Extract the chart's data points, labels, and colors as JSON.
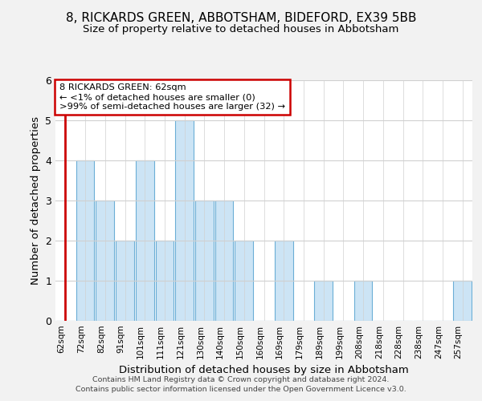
{
  "title1": "8, RICKARDS GREEN, ABBOTSHAM, BIDEFORD, EX39 5BB",
  "title2": "Size of property relative to detached houses in Abbotsham",
  "xlabel": "Distribution of detached houses by size in Abbotsham",
  "ylabel": "Number of detached properties",
  "categories": [
    "62sqm",
    "72sqm",
    "82sqm",
    "91sqm",
    "101sqm",
    "111sqm",
    "121sqm",
    "130sqm",
    "140sqm",
    "150sqm",
    "160sqm",
    "169sqm",
    "179sqm",
    "189sqm",
    "199sqm",
    "208sqm",
    "218sqm",
    "228sqm",
    "238sqm",
    "247sqm",
    "257sqm"
  ],
  "values": [
    0,
    4,
    3,
    2,
    4,
    2,
    5,
    3,
    3,
    2,
    0,
    2,
    0,
    1,
    0,
    1,
    0,
    0,
    0,
    0,
    1
  ],
  "bar_color": "#cce4f5",
  "bar_edge_color": "#6baed6",
  "highlight_index": 0,
  "highlight_color": "#cc0000",
  "annotation_line1": "8 RICKARDS GREEN: 62sqm",
  "annotation_line2": "← <1% of detached houses are smaller (0)",
  "annotation_line3": ">99% of semi-detached houses are larger (32) →",
  "annotation_box_color": "#ffffff",
  "annotation_box_edge": "#cc0000",
  "ylim": [
    0,
    6
  ],
  "yticks": [
    0,
    1,
    2,
    3,
    4,
    5,
    6
  ],
  "footer1": "Contains HM Land Registry data © Crown copyright and database right 2024.",
  "footer2": "Contains public sector information licensed under the Open Government Licence v3.0.",
  "background_color": "#f2f2f2",
  "plot_bg_color": "#ffffff",
  "grid_color": "#d0d0d0"
}
